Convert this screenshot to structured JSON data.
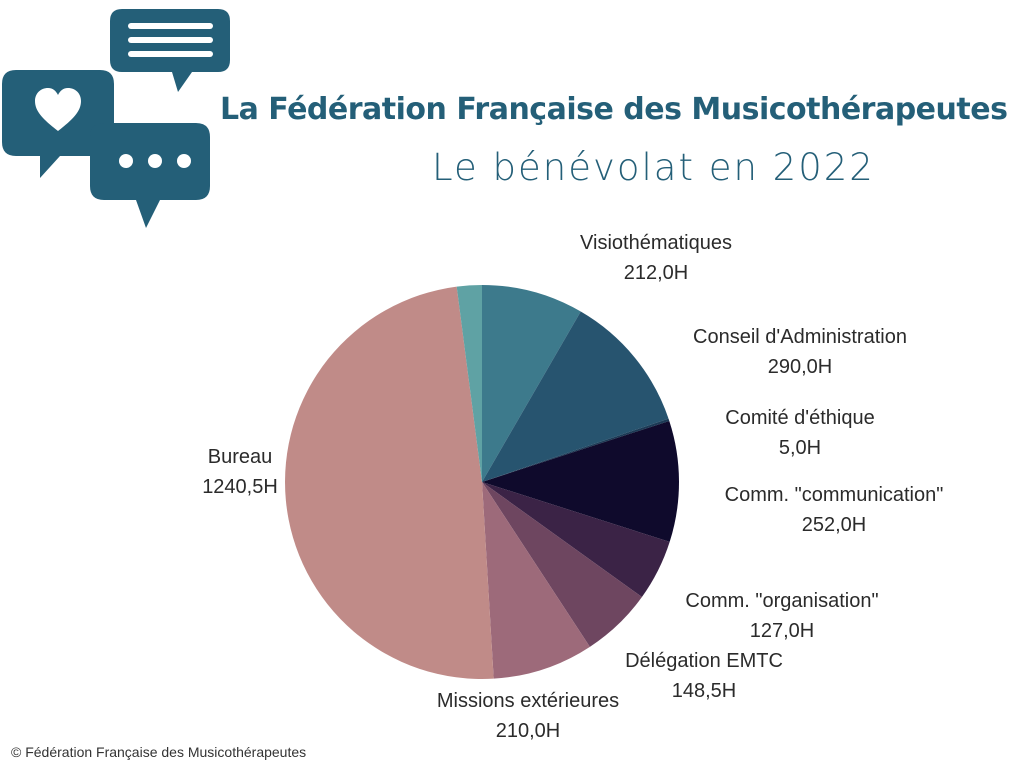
{
  "header": {
    "title": "La Fédération Française des Musicothérapeutes",
    "subtitle": "Le bénévolat en 2022",
    "logo_icons": [
      "speech-bubble-lines-icon",
      "speech-bubble-heart-icon",
      "speech-bubble-dots-icon"
    ],
    "accent_color": "#245f78"
  },
  "chart_data": {
    "type": "pie",
    "unit": "H",
    "slices": [
      {
        "name": "Visiothématiques",
        "value": 212.0,
        "value_label": "212,0H",
        "color": "#3d7a8c"
      },
      {
        "name": "Conseil d'Administration",
        "value": 290.0,
        "value_label": "290,0H",
        "color": "#27546f"
      },
      {
        "name": "Comité d'éthique",
        "value": 5.0,
        "value_label": "5,0H",
        "color": "#1b3a55"
      },
      {
        "name": "Comm. \"communication\"",
        "value": 252.0,
        "value_label": "252,0H",
        "color": "#0f0a2c"
      },
      {
        "name": "Comm. \"organisation\"",
        "value": 127.0,
        "value_label": "127,0H",
        "color": "#3b2346"
      },
      {
        "name": "Délégation EMTC",
        "value": 148.5,
        "value_label": "148,5H",
        "color": "#6e4660"
      },
      {
        "name": "Missions extérieures",
        "value": 210.0,
        "value_label": "210,0H",
        "color": "#9d6a7a"
      },
      {
        "name": "Bureau",
        "value": 1240.5,
        "value_label": "1240,5H",
        "color": "#c08b88"
      },
      {
        "name": "",
        "value": 52.0,
        "value_label": "",
        "color": "#5fa2a4"
      }
    ]
  },
  "footer": {
    "copyright": "© Fédération Française des Musicothérapeutes"
  }
}
